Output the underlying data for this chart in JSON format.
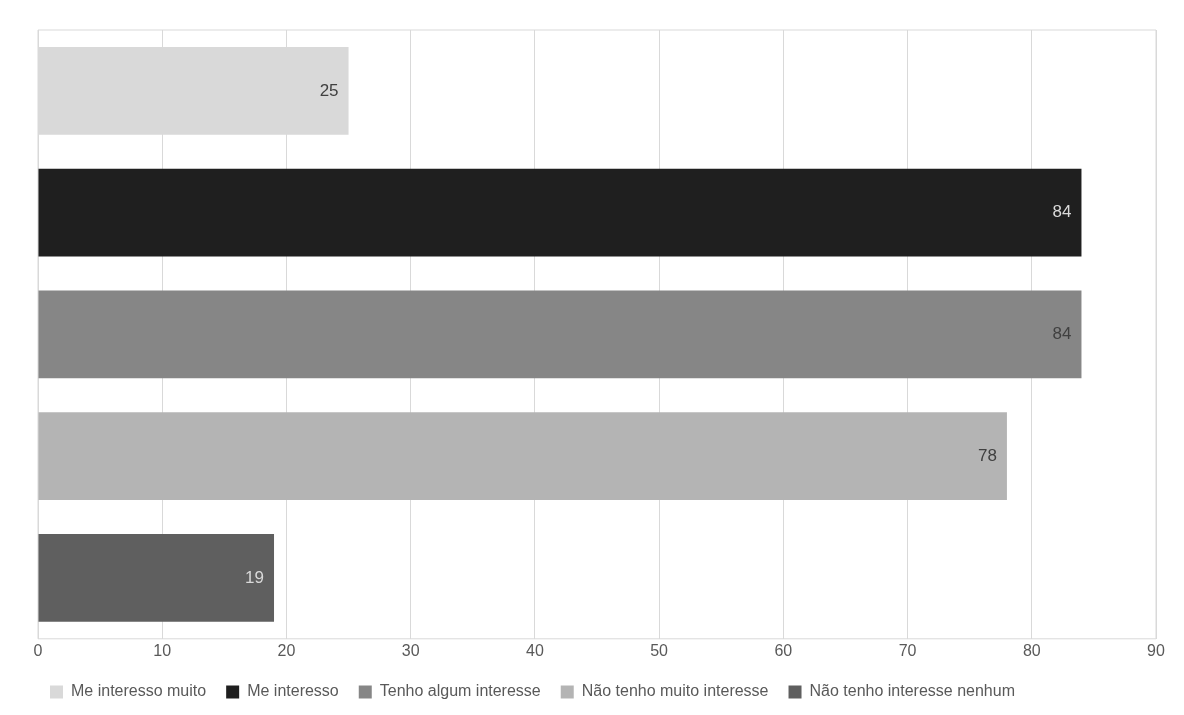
{
  "chart_data": {
    "type": "bar",
    "orientation": "horizontal",
    "categories": [
      null,
      null,
      null,
      null,
      null
    ],
    "series": [
      {
        "name": "Me interesso muito",
        "color": "#d9d9d9",
        "values": [
          25,
          null,
          null,
          null,
          null
        ]
      },
      {
        "name": "Me interesso",
        "color": "#1f1f1f",
        "values": [
          null,
          84,
          null,
          null,
          null
        ]
      },
      {
        "name": "Tenho algum interesse",
        "color": "#868686",
        "values": [
          null,
          null,
          84,
          null,
          null
        ]
      },
      {
        "name": "Não tenho muito interesse",
        "color": "#b4b4b4",
        "values": [
          null,
          null,
          null,
          78,
          null
        ]
      },
      {
        "name": "Não tenho interesse nenhum",
        "color": "#5f5f5f",
        "values": [
          null,
          null,
          null,
          null,
          19
        ]
      }
    ],
    "xlim": [
      0,
      90
    ],
    "xticks": [
      0,
      10,
      20,
      30,
      40,
      50,
      60,
      70,
      80,
      90
    ],
    "grid": "x",
    "legend": "bottom",
    "data_labels": true
  }
}
